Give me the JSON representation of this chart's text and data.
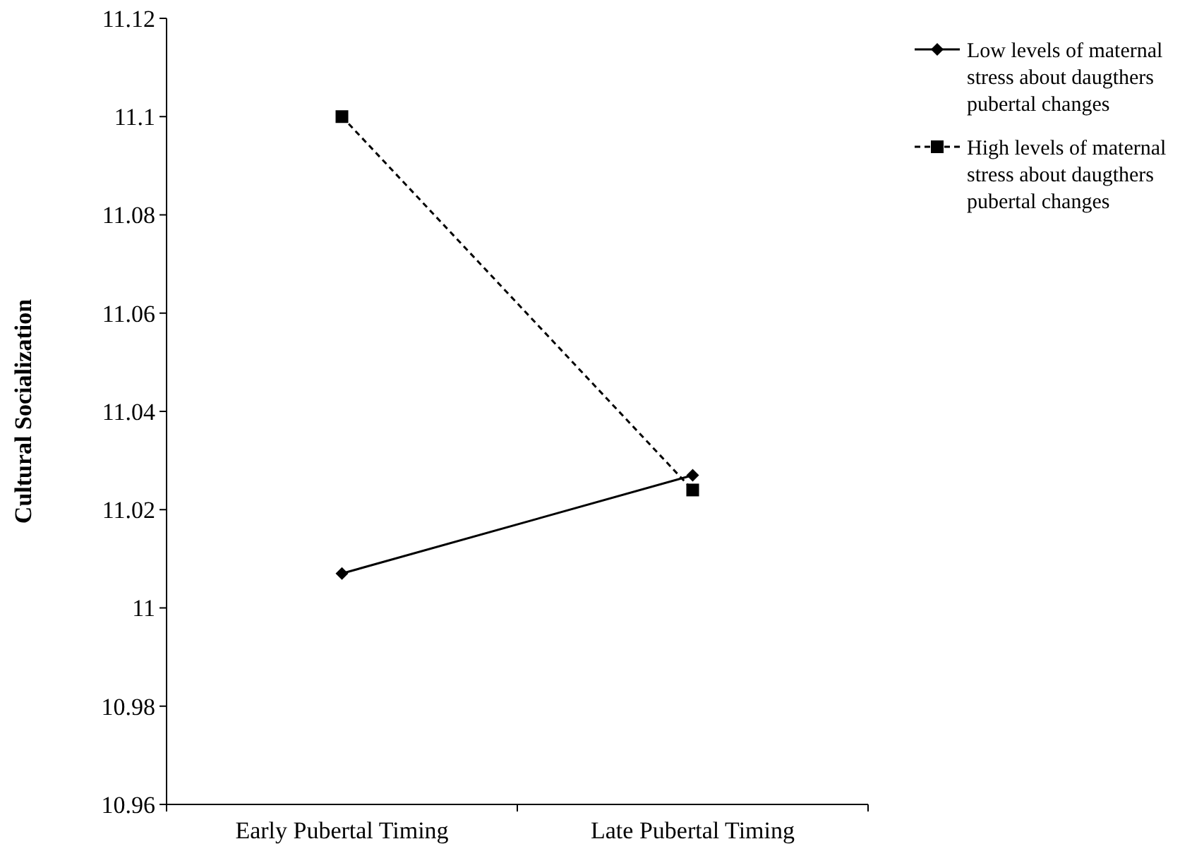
{
  "chart_data": {
    "type": "line",
    "ylabel": "Cultural Socialization",
    "categories": [
      "Early Pubertal Timing",
      "Late Pubertal Timing"
    ],
    "series": [
      {
        "name": "Low levels of maternal stress about daugthers pubertal changes",
        "color": "#000000",
        "values": [
          11.007,
          11.027
        ],
        "marker": "diamond",
        "line_style": "solid"
      },
      {
        "name": "High levels of maternal stress about daugthers pubertal changes",
        "color": "#000000",
        "values": [
          11.1,
          11.024
        ],
        "marker": "square",
        "line_style": "dashed"
      }
    ],
    "ylim": [
      10.96,
      11.12
    ],
    "yticks": [
      10.96,
      10.98,
      11,
      11.02,
      11.04,
      11.06,
      11.08,
      11.1,
      11.12
    ],
    "grid": false,
    "legend": "top right"
  }
}
